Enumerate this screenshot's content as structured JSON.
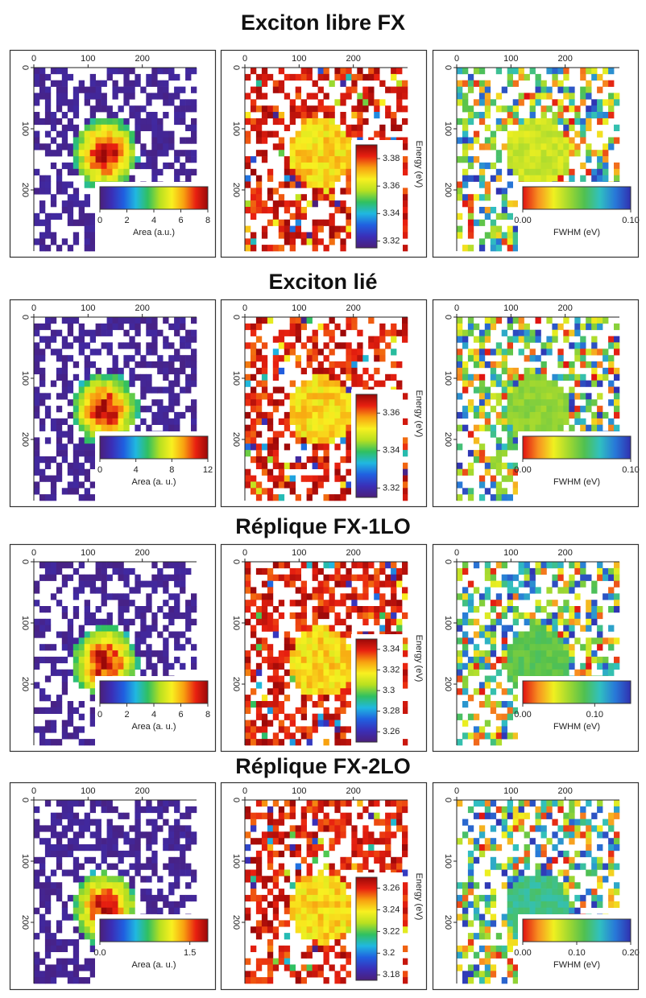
{
  "sections": [
    {
      "title": "Exciton libre FX",
      "panels": [
        {
          "kind": "area",
          "x_ticks": [
            0,
            100,
            200
          ],
          "y_ticks": [
            0,
            100,
            200
          ],
          "axis_lim": [
            0,
            300
          ],
          "colorbar": {
            "orientation": "horizontal",
            "lim": [
              0,
              8
            ],
            "ticks": [
              0,
              2,
              4,
              6,
              8
            ],
            "label": "Area (a.u.)"
          }
        },
        {
          "kind": "energy",
          "x_ticks": [
            0,
            100,
            200
          ],
          "y_ticks": [
            0,
            100,
            200
          ],
          "axis_lim": [
            0,
            300
          ],
          "colorbar": {
            "orientation": "vertical",
            "lim": [
              3.315,
              3.39
            ],
            "ticks": [
              3.32,
              3.34,
              3.36,
              3.38
            ],
            "label": "Energy (eV)"
          }
        },
        {
          "kind": "fwhm",
          "x_ticks": [
            0,
            100,
            200
          ],
          "y_ticks": [
            0,
            100,
            200
          ],
          "axis_lim": [
            0,
            300
          ],
          "colorbar": {
            "orientation": "horizontal",
            "lim": [
              0,
              0.1
            ],
            "ticks": [
              {
                "value": 0,
                "label": "0.00"
              },
              {
                "value": 0.1,
                "label": "0.10"
              }
            ],
            "label": "FWHM (eV)"
          }
        }
      ]
    },
    {
      "title": "Exciton lié",
      "panels": [
        {
          "kind": "area",
          "x_ticks": [
            0,
            100,
            200
          ],
          "y_ticks": [
            0,
            100,
            200
          ],
          "axis_lim": [
            0,
            300
          ],
          "colorbar": {
            "orientation": "horizontal",
            "lim": [
              0,
              12
            ],
            "ticks": [
              0,
              4,
              8,
              12
            ],
            "label": "Area (a. u.)"
          }
        },
        {
          "kind": "energy",
          "x_ticks": [
            0,
            100,
            200
          ],
          "y_ticks": [
            0,
            100,
            200
          ],
          "axis_lim": [
            0,
            300
          ],
          "colorbar": {
            "orientation": "vertical",
            "lim": [
              3.315,
              3.37
            ],
            "ticks": [
              3.32,
              3.34,
              3.36
            ],
            "label": "Energy (eV)"
          }
        },
        {
          "kind": "fwhm",
          "x_ticks": [
            0,
            100,
            200
          ],
          "y_ticks": [
            0,
            100,
            200
          ],
          "axis_lim": [
            0,
            300
          ],
          "colorbar": {
            "orientation": "horizontal",
            "lim": [
              0,
              0.1
            ],
            "ticks": [
              {
                "value": 0,
                "label": "0.00"
              },
              {
                "value": 0.1,
                "label": "0.10"
              }
            ],
            "label": "FWHM (eV)"
          }
        }
      ]
    },
    {
      "title": "Réplique FX-1LO",
      "panels": [
        {
          "kind": "area",
          "x_ticks": [
            0,
            100,
            200
          ],
          "y_ticks": [
            0,
            100,
            200
          ],
          "axis_lim": [
            0,
            300
          ],
          "colorbar": {
            "orientation": "horizontal",
            "lim": [
              0,
              8
            ],
            "ticks": [
              0,
              2,
              4,
              6,
              8
            ],
            "label": "Area (a. u.)"
          }
        },
        {
          "kind": "energy",
          "x_ticks": [
            0,
            100,
            200
          ],
          "y_ticks": [
            0,
            100,
            200
          ],
          "axis_lim": [
            0,
            300
          ],
          "colorbar": {
            "orientation": "vertical",
            "lim": [
              3.25,
              3.35
            ],
            "ticks": [
              3.26,
              3.28,
              3.3,
              3.32,
              3.34
            ],
            "label": "Energy (eV)"
          }
        },
        {
          "kind": "fwhm",
          "x_ticks": [
            0,
            100,
            200
          ],
          "y_ticks": [
            0,
            100,
            200
          ],
          "axis_lim": [
            0,
            300
          ],
          "colorbar": {
            "orientation": "horizontal",
            "lim": [
              0,
              0.15
            ],
            "ticks": [
              {
                "value": 0,
                "label": "0.00"
              },
              {
                "value": 0.1,
                "label": "0.10"
              }
            ],
            "label": "FWHM (eV)"
          }
        }
      ]
    },
    {
      "title": "Réplique FX-2LO",
      "panels": [
        {
          "kind": "area",
          "x_ticks": [
            0,
            100,
            200
          ],
          "y_ticks": [
            0,
            100,
            200
          ],
          "axis_lim": [
            0,
            300
          ],
          "colorbar": {
            "orientation": "horizontal",
            "lim": [
              0,
              1.8
            ],
            "ticks": [
              {
                "value": 0,
                "label": "0.0"
              },
              1.5
            ],
            "label": "Area (a. u.)"
          }
        },
        {
          "kind": "energy",
          "x_ticks": [
            0,
            100,
            200
          ],
          "y_ticks": [
            0,
            100,
            200
          ],
          "axis_lim": [
            0,
            300
          ],
          "colorbar": {
            "orientation": "vertical",
            "lim": [
              3.175,
              3.27
            ],
            "ticks": [
              3.18,
              3.2,
              3.22,
              3.24,
              3.26
            ],
            "label": "Energy (eV)"
          }
        },
        {
          "kind": "fwhm",
          "x_ticks": [
            0,
            100,
            200
          ],
          "y_ticks": [
            0,
            100,
            200
          ],
          "axis_lim": [
            0,
            300
          ],
          "colorbar": {
            "orientation": "horizontal",
            "lim": [
              0,
              0.2
            ],
            "ticks": [
              {
                "value": 0,
                "label": "0.00"
              },
              {
                "value": 0.1,
                "label": "0.10"
              },
              {
                "value": 0.2,
                "label": "0.20"
              }
            ],
            "label": "FWHM (eV)"
          }
        }
      ]
    }
  ]
}
